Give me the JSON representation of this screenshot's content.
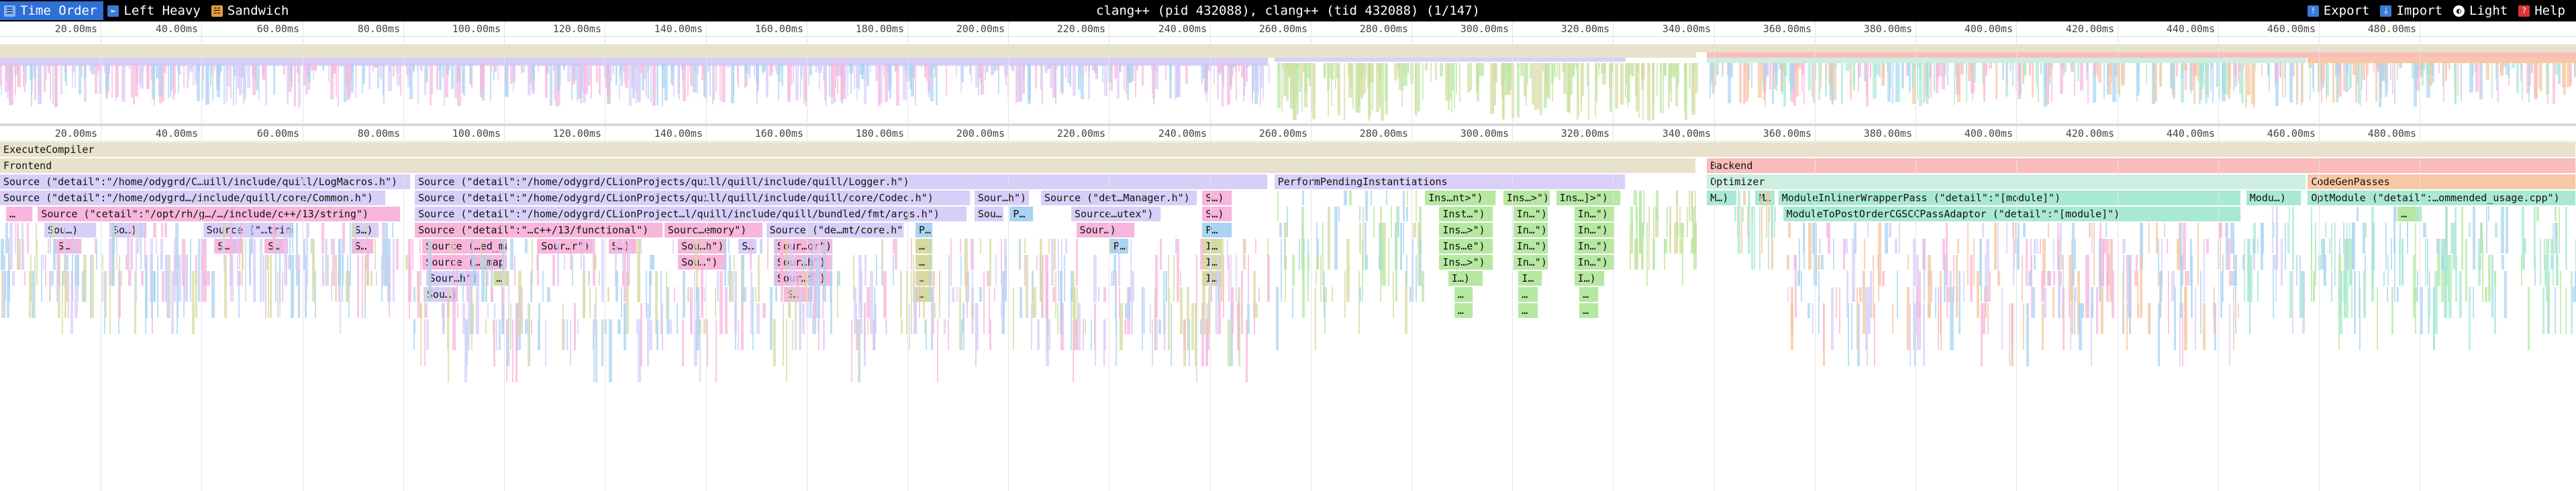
{
  "toolbar": {
    "left_buttons": [
      {
        "label": "Time Order",
        "icon": "time-order-icon",
        "active": true
      },
      {
        "label": "Left Heavy",
        "icon": "left-heavy-icon",
        "active": false
      },
      {
        "label": "Sandwich",
        "icon": "sandwich-icon",
        "active": false
      }
    ],
    "title": "clang++ (pid 432088), clang++ (tid 432088) (1/147)",
    "right_buttons": [
      {
        "label": "Export",
        "icon": "export-icon"
      },
      {
        "label": "Import",
        "icon": "import-icon"
      },
      {
        "label": "Light",
        "icon": "theme-icon"
      },
      {
        "label": "Help",
        "icon": "help-icon"
      }
    ]
  },
  "time_axis": {
    "unit_ms": 20,
    "total_ms": 511,
    "ticks": [
      "20.00ms",
      "40.00ms",
      "60.00ms",
      "80.00ms",
      "100.00ms",
      "120.00ms",
      "140.00ms",
      "160.00ms",
      "180.00ms",
      "200.00ms",
      "220.00ms",
      "240.00ms",
      "260.00ms",
      "280.00ms",
      "300.00ms",
      "320.00ms",
      "340.00ms",
      "360.00ms",
      "380.00ms",
      "400.00ms",
      "420.00ms",
      "440.00ms",
      "460.00ms",
      "480.00ms"
    ]
  },
  "colors": {
    "execute": "#e8e2cc",
    "frontend": "#e8e2cc",
    "backend": "#fbbcbc",
    "source_lavender": "#d8cff8",
    "source_pink": "#f8b6dc",
    "perform": "#d9d0fa",
    "inst_green": "#b6e8a2",
    "optimizer": "#cdeee0",
    "pass_teal": "#a9e9d4",
    "codegen": "#f8c7a4",
    "blue": "#a9d4f2",
    "olive": "#d5dba0",
    "orange": "#f5c69c"
  },
  "frames": [
    {
      "label": "ExecuteCompiler",
      "start": 0,
      "end": 511,
      "depth": 0,
      "color": "execute"
    },
    {
      "label": "Frontend",
      "start": 0,
      "end": 336.5,
      "depth": 1,
      "color": "frontend"
    },
    {
      "label": "Backend",
      "start": 338.6,
      "end": 511,
      "depth": 1,
      "color": "backend"
    },
    {
      "label": "Source (\"detail\":\"/home/odygrd/C…uill/include/quill/LogMacros.h\")",
      "start": 0,
      "end": 81.5,
      "depth": 2,
      "color": "source_lavender"
    },
    {
      "label": "Source (\"detail\":\"/home/odygrd/CLionProjects/quill/quill/include/quill/Logger.h\")",
      "start": 82.3,
      "end": 251.5,
      "depth": 2,
      "color": "source_lavender"
    },
    {
      "label": "PerformPendingInstantiations",
      "start": 252.8,
      "end": 322.5,
      "depth": 2,
      "color": "perform"
    },
    {
      "label": "Optimizer",
      "start": 338.6,
      "end": 457.5,
      "depth": 2,
      "color": "optimizer"
    },
    {
      "label": "CodeGenPasses",
      "start": 457.8,
      "end": 511,
      "depth": 2,
      "color": "codegen"
    },
    {
      "label": "Source (\"detail\":\"/home/odygrd…/include/quill/core/Common.h\")",
      "start": 0,
      "end": 76.5,
      "depth": 3,
      "color": "source_lavender"
    },
    {
      "label": "Source (\"detail\":\"/home/odygrd/CLionProjects/quill/quill/include/quill/core/Codec.h\")",
      "start": 82.3,
      "end": 192.5,
      "depth": 3,
      "color": "source_lavender"
    },
    {
      "label": "Sour…h\")",
      "start": 193.3,
      "end": 204.2,
      "depth": 3,
      "color": "source_lavender"
    },
    {
      "label": "Source (\"det…Manager.h\")",
      "start": 206.5,
      "end": 237.5,
      "depth": 3,
      "color": "source_lavender"
    },
    {
      "label": "S…)",
      "start": 238.5,
      "end": 244.5,
      "depth": 3,
      "color": "source_pink"
    },
    {
      "label": "Ins…nt>\")",
      "start": 282.7,
      "end": 296.8,
      "depth": 3,
      "color": "inst_green"
    },
    {
      "label": "Ins…>\")",
      "start": 298.2,
      "end": 307.5,
      "depth": 3,
      "color": "inst_green"
    },
    {
      "label": "Ins…]>\")",
      "start": 308.7,
      "end": 321.5,
      "depth": 3,
      "color": "inst_green"
    },
    {
      "label": "M…)",
      "start": 338.6,
      "end": 344.6,
      "depth": 3,
      "color": "pass_teal"
    },
    {
      "label": "M…",
      "start": 348.2,
      "end": 352.2,
      "depth": 3,
      "color": "pass_teal"
    },
    {
      "label": "ModuleInlinerWrapperPass (\"detail\":\"[module]\")",
      "start": 352.8,
      "end": 444.6,
      "depth": 3,
      "color": "pass_teal"
    },
    {
      "label": "Modu…)",
      "start": 445.6,
      "end": 456.6,
      "depth": 3,
      "color": "pass_teal"
    },
    {
      "label": "OptModule (\"detail\":…ommended_usage.cpp\")",
      "start": 457.8,
      "end": 511,
      "depth": 3,
      "color": "pass_teal"
    },
    {
      "label": "…",
      "start": 1.2,
      "end": 6.5,
      "depth": 4,
      "color": "source_pink"
    },
    {
      "label": "Source (\"cetail\":\"/opt/rh/g…/…/include/c++/13/string\")",
      "start": 7.5,
      "end": 79.5,
      "depth": 4,
      "color": "source_pink"
    },
    {
      "label": "Source (\"detail\":\"/home/odygrd/CLionProject…l/quill/include/quill/bundled/fmt/args.h\")",
      "start": 82.3,
      "end": 191.8,
      "depth": 4,
      "color": "source_lavender"
    },
    {
      "label": "Sou…)",
      "start": 193.3,
      "end": 199.2,
      "depth": 4,
      "color": "source_lavender"
    },
    {
      "label": "P…",
      "start": 200.3,
      "end": 205,
      "depth": 4,
      "color": "blue"
    },
    {
      "label": "Source…utex\")",
      "start": 212.5,
      "end": 230.3,
      "depth": 4,
      "color": "source_lavender"
    },
    {
      "label": "S…)",
      "start": 238.5,
      "end": 244.5,
      "depth": 4,
      "color": "source_pink"
    },
    {
      "label": "Inst…\")",
      "start": 285.5,
      "end": 296.2,
      "depth": 4,
      "color": "inst_green"
    },
    {
      "label": "In…\")",
      "start": 300.2,
      "end": 307.2,
      "depth": 4,
      "color": "inst_green"
    },
    {
      "label": "In…\")",
      "start": 312.3,
      "end": 320.3,
      "depth": 4,
      "color": "inst_green"
    },
    {
      "label": "ModuleToPostOrderCGSCCPassAdaptor (\"detail\":\"[module]\")",
      "start": 353.7,
      "end": 444.6,
      "depth": 4,
      "color": "pass_teal"
    },
    {
      "label": "…",
      "start": 475.6,
      "end": 480.5,
      "depth": 4,
      "color": "inst_green"
    },
    {
      "label": "Sou…)",
      "start": 8.8,
      "end": 19.2,
      "depth": 5,
      "color": "source_lavender"
    },
    {
      "label": "So…)",
      "start": 21.7,
      "end": 29.2,
      "depth": 5,
      "color": "source_lavender"
    },
    {
      "label": "Source (\"…tring.h\")",
      "start": 40.3,
      "end": 58.3,
      "depth": 5,
      "color": "source_lavender"
    },
    {
      "label": "S…)",
      "start": 69.7,
      "end": 75.2,
      "depth": 5,
      "color": "source_lavender"
    },
    {
      "label": "Source (\"detail\":\"…c++/13/functional\")",
      "start": 82.3,
      "end": 131.5,
      "depth": 5,
      "color": "source_pink"
    },
    {
      "label": "Sourc…emory\")",
      "start": 131.8,
      "end": 151.4,
      "depth": 5,
      "color": "source_pink"
    },
    {
      "label": "Source (\"de…mt/core.h\")",
      "start": 152,
      "end": 179.3,
      "depth": 5,
      "color": "source_lavender"
    },
    {
      "label": "P…",
      "start": 181.6,
      "end": 185.1,
      "depth": 5,
      "color": "blue"
    },
    {
      "label": "Sour…)",
      "start": 213.5,
      "end": 225.2,
      "depth": 5,
      "color": "source_pink"
    },
    {
      "label": "P…",
      "start": 238.5,
      "end": 244.5,
      "depth": 5,
      "color": "blue"
    },
    {
      "label": "Ins…>\")",
      "start": 285.5,
      "end": 296.2,
      "depth": 5,
      "color": "inst_green"
    },
    {
      "label": "In…\")",
      "start": 300.2,
      "end": 307.2,
      "depth": 5,
      "color": "inst_green"
    },
    {
      "label": "In…\")",
      "start": 312.3,
      "end": 320.3,
      "depth": 5,
      "color": "inst_green"
    },
    {
      "label": "S…",
      "start": 10.8,
      "end": 16.2,
      "depth": 6,
      "color": "source_pink"
    },
    {
      "label": "S…",
      "start": 42.5,
      "end": 48.2,
      "depth": 6,
      "color": "source_pink"
    },
    {
      "label": "S…",
      "start": 52.5,
      "end": 57.2,
      "depth": 6,
      "color": "source_pink"
    },
    {
      "label": "S…",
      "start": 69.7,
      "end": 74.2,
      "depth": 6,
      "color": "source_pink"
    },
    {
      "label": "Source (…ed_map\")",
      "start": 83.8,
      "end": 100.7,
      "depth": 6,
      "color": "source_pink"
    },
    {
      "label": "Sour…r\")",
      "start": 106.7,
      "end": 117.7,
      "depth": 6,
      "color": "source_pink"
    },
    {
      "label": "S…)",
      "start": 120.7,
      "end": 126.4,
      "depth": 6,
      "color": "source_pink"
    },
    {
      "label": "Sou…h\")",
      "start": 134.5,
      "end": 144.2,
      "depth": 6,
      "color": "source_pink"
    },
    {
      "label": "S…",
      "start": 146.5,
      "end": 150.2,
      "depth": 6,
      "color": "source_lavender"
    },
    {
      "label": "Sour…or\")",
      "start": 153.5,
      "end": 165.2,
      "depth": 6,
      "color": "source_pink"
    },
    {
      "label": "…",
      "start": 181.6,
      "end": 185.1,
      "depth": 6,
      "color": "olive"
    },
    {
      "label": "P…",
      "start": 220.2,
      "end": 223.9,
      "depth": 6,
      "color": "blue"
    },
    {
      "label": "I…",
      "start": 238.5,
      "end": 242.5,
      "depth": 6,
      "color": "olive"
    },
    {
      "label": "Ins…e\")",
      "start": 285.5,
      "end": 296.2,
      "depth": 6,
      "color": "inst_green"
    },
    {
      "label": "In…\")",
      "start": 300.2,
      "end": 307.2,
      "depth": 6,
      "color": "inst_green"
    },
    {
      "label": "In…\")",
      "start": 312.3,
      "end": 320.3,
      "depth": 6,
      "color": "inst_green"
    },
    {
      "label": "Source (…_map.h\")",
      "start": 83.8,
      "end": 100.7,
      "depth": 7,
      "color": "source_pink"
    },
    {
      "label": "Sou…\")",
      "start": 134.5,
      "end": 144.2,
      "depth": 7,
      "color": "source_pink"
    },
    {
      "label": "Sour…h\")",
      "start": 153.5,
      "end": 165.2,
      "depth": 7,
      "color": "source_pink"
    },
    {
      "label": "…",
      "start": 181.6,
      "end": 185.1,
      "depth": 7,
      "color": "olive"
    },
    {
      "label": "I…",
      "start": 238.5,
      "end": 242.5,
      "depth": 7,
      "color": "olive"
    },
    {
      "label": "Ins…>\")",
      "start": 285.5,
      "end": 296.2,
      "depth": 7,
      "color": "inst_green"
    },
    {
      "label": "In…\")",
      "start": 300.2,
      "end": 307.2,
      "depth": 7,
      "color": "inst_green"
    },
    {
      "label": "In…\")",
      "start": 312.3,
      "end": 320.3,
      "depth": 7,
      "color": "inst_green"
    },
    {
      "label": "Sour…h\")",
      "start": 84.5,
      "end": 95.2,
      "depth": 8,
      "color": "source_lavender"
    },
    {
      "label": "…",
      "start": 97.8,
      "end": 101,
      "depth": 8,
      "color": "olive"
    },
    {
      "label": "Sour…f\")",
      "start": 153.5,
      "end": 165.2,
      "depth": 8,
      "color": "source_pink"
    },
    {
      "label": "…",
      "start": 181.6,
      "end": 185.1,
      "depth": 8,
      "color": "olive"
    },
    {
      "label": "I…",
      "start": 238.5,
      "end": 242.5,
      "depth": 8,
      "color": "olive"
    },
    {
      "label": "I…)",
      "start": 287.3,
      "end": 294.2,
      "depth": 8,
      "color": "inst_green"
    },
    {
      "label": "I…",
      "start": 301.2,
      "end": 306,
      "depth": 8,
      "color": "inst_green"
    },
    {
      "label": "I…)",
      "start": 312.3,
      "end": 318.3,
      "depth": 8,
      "color": "inst_green"
    },
    {
      "label": "Sou…)",
      "start": 84,
      "end": 90.9,
      "depth": 9,
      "color": "source_lavender"
    },
    {
      "label": "S…",
      "start": 155.5,
      "end": 161.2,
      "depth": 9,
      "color": "source_pink"
    },
    {
      "label": "…",
      "start": 181.6,
      "end": 185.1,
      "depth": 9,
      "color": "olive"
    },
    {
      "label": "…",
      "start": 288.5,
      "end": 292.2,
      "depth": 9,
      "color": "inst_green"
    },
    {
      "label": "…",
      "start": 301.2,
      "end": 305.2,
      "depth": 9,
      "color": "inst_green"
    },
    {
      "label": "…",
      "start": 313.3,
      "end": 317.2,
      "depth": 9,
      "color": "inst_green"
    },
    {
      "label": "…",
      "start": 288.5,
      "end": 292.2,
      "depth": 10,
      "color": "inst_green"
    },
    {
      "label": "…",
      "start": 301.2,
      "end": 305.2,
      "depth": 10,
      "color": "inst_green"
    },
    {
      "label": "…",
      "start": 313.3,
      "end": 317.2,
      "depth": 10,
      "color": "inst_green"
    }
  ]
}
